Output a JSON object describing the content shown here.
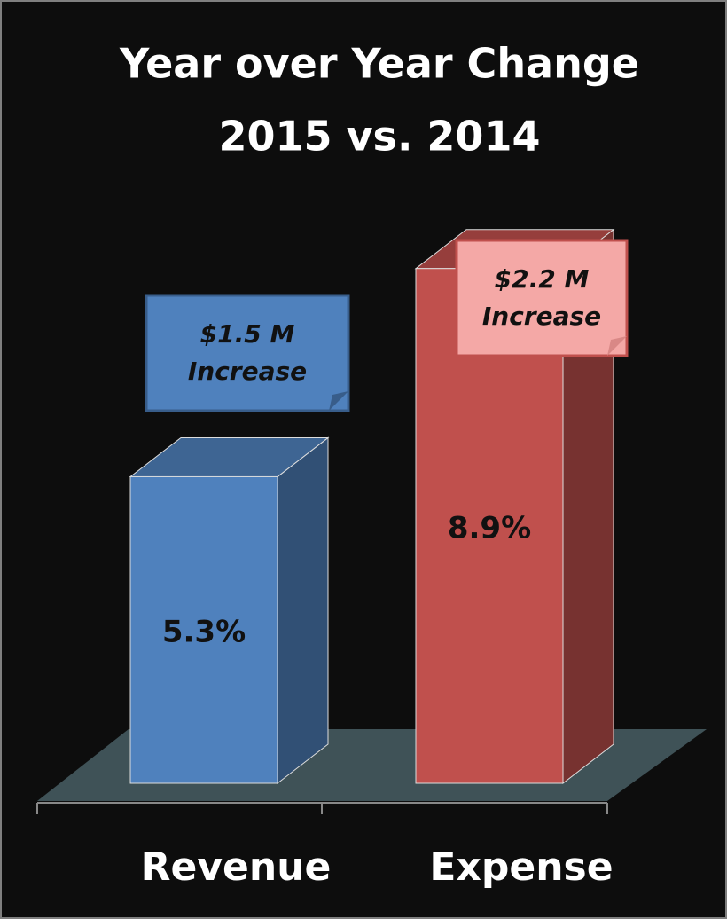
{
  "chart_data": {
    "type": "bar3d",
    "title": "Year over Year Change",
    "subtitle": "2015 vs. 2014",
    "categories": [
      "Revenue",
      "Expense"
    ],
    "values": [
      5.3,
      8.9
    ],
    "value_labels": [
      "5.3%",
      "8.9%"
    ],
    "colors": [
      "#4f81bd",
      "#c0504d"
    ],
    "annotations": [
      "$1.5 M Increase",
      "$2.2 M Increase"
    ]
  }
}
